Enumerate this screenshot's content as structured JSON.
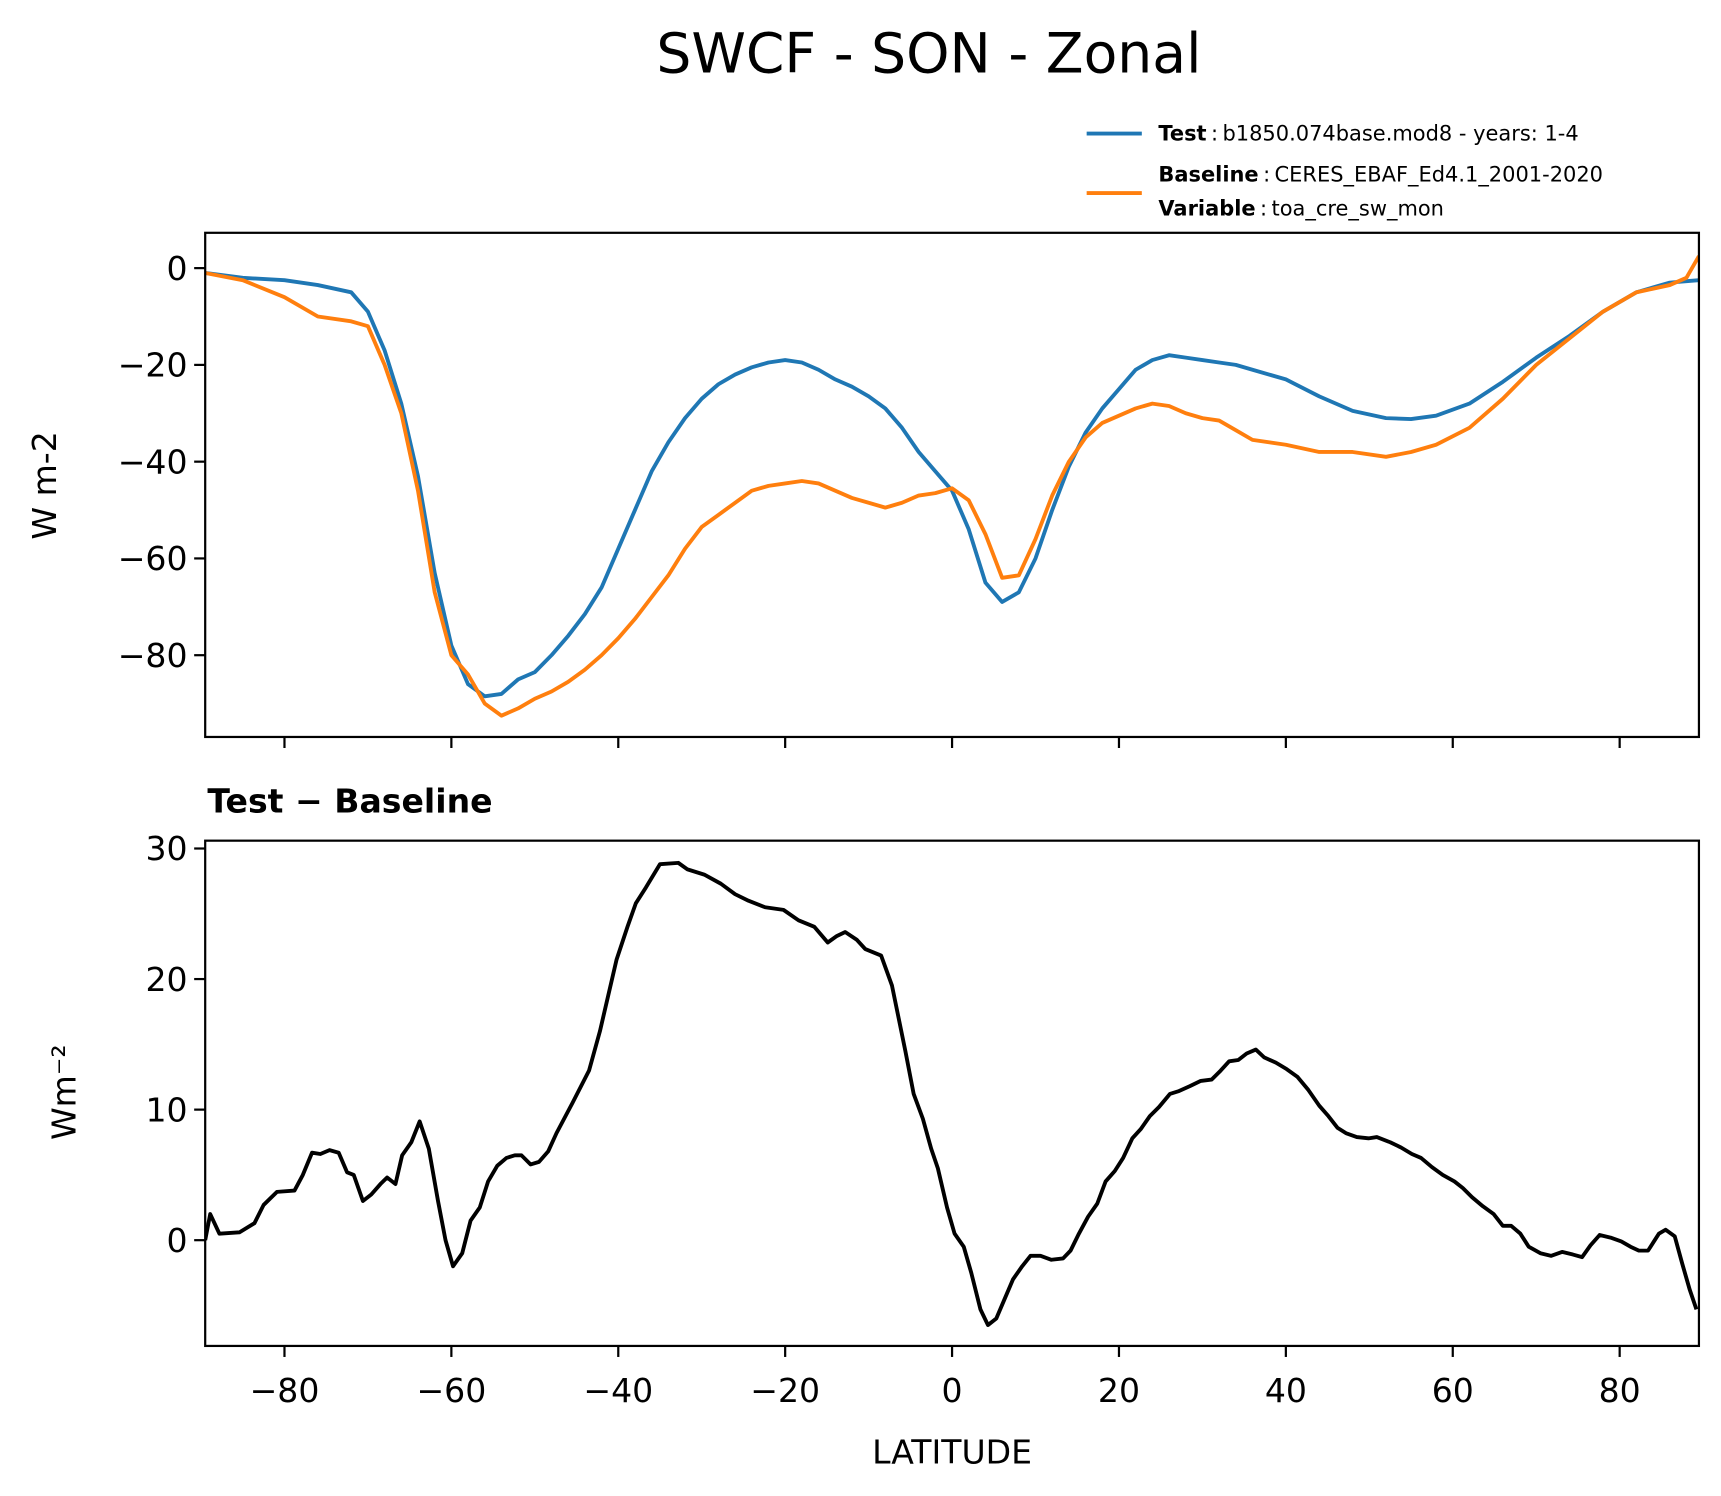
{
  "title": "SWCF - SON - Zonal",
  "chart_data": [
    {
      "type": "line",
      "ylabel": "W m-2",
      "legend_separator": ":",
      "legend_extra": {
        "name": "Variable",
        "description": "toa_cre_sw_mon"
      },
      "xlim": [
        -89.5,
        89.5
      ],
      "ylim": [
        -96.9,
        7.3
      ],
      "yticks": [
        0,
        {
          "value": -20,
          "label": "−20"
        },
        {
          "value": -40,
          "label": "−40"
        },
        {
          "value": -60,
          "label": "−60"
        },
        {
          "value": -80,
          "label": "−80"
        }
      ],
      "x": [
        -89.5,
        -85,
        -80,
        -76,
        -72,
        -70,
        -68,
        -66,
        -64,
        -62,
        -60,
        -58,
        -56,
        -54,
        -52,
        -50,
        -48,
        -46,
        -44,
        -42,
        -40,
        -38,
        -36,
        -34,
        -32,
        -30,
        -28,
        -26,
        -24,
        -22,
        -20,
        -18,
        -16,
        -14,
        -12,
        -10,
        -8,
        -6,
        -4,
        -2,
        0,
        2,
        4,
        6,
        8,
        10,
        12,
        14,
        16,
        18,
        20,
        22,
        24,
        26,
        28,
        30,
        32,
        34,
        36,
        40,
        44,
        48,
        52,
        55,
        58,
        62,
        66,
        70,
        74,
        78,
        82,
        86,
        88,
        89.5
      ],
      "series": [
        {
          "name": "Test",
          "description": "b1850.074base.mod8 - years: 1-4",
          "color": "#1f77b4",
          "values": [
            -1,
            -2,
            -2.5,
            -3.5,
            -5,
            -9,
            -17,
            -28,
            -43,
            -63,
            -78,
            -86,
            -88.5,
            -88,
            -85,
            -83.5,
            -80,
            -76,
            -71.5,
            -66,
            -58,
            -50,
            -42,
            -36,
            -31,
            -27,
            -24,
            -22,
            -20.5,
            -19.5,
            -19,
            -19.5,
            -21,
            -23,
            -24.5,
            -26.5,
            -29,
            -33,
            -38,
            -42,
            -46,
            -54,
            -65,
            -69,
            -67,
            -60,
            -50,
            -41,
            -34,
            -29,
            -25,
            -21,
            -19,
            -18,
            -18.5,
            -19,
            -19.5,
            -20,
            -21,
            -23,
            -26.5,
            -29.5,
            -31,
            -31.2,
            -30.5,
            -28,
            -23.5,
            -18.5,
            -14,
            -9,
            -5,
            -3,
            -2.7,
            -2.5
          ]
        },
        {
          "name": "Baseline",
          "description": "CERES_EBAF_Ed4.1_2001-2020",
          "color": "#ff7f0e",
          "values": [
            -1,
            -2.5,
            -6,
            -10,
            -11,
            -12,
            -20,
            -30,
            -46,
            -67,
            -80,
            -84,
            -90,
            -92.5,
            -91,
            -89,
            -87.5,
            -85.5,
            -83,
            -80,
            -76.5,
            -72.5,
            -68,
            -63.5,
            -58,
            -53.5,
            -51,
            -48.5,
            -46,
            -45,
            -44.5,
            -44,
            -44.5,
            -46,
            -47.5,
            -48.5,
            -49.5,
            -48.5,
            -47,
            -46.5,
            -45.5,
            -48,
            -55,
            -64,
            -63.5,
            -56,
            -47,
            -40,
            -35,
            -32,
            -30.5,
            -29,
            -28,
            -28.5,
            -30,
            -31,
            -31.5,
            -33.5,
            -35.5,
            -36.5,
            -38,
            -38,
            -39,
            -38,
            -36.5,
            -33,
            -27,
            -20,
            -14.5,
            -9,
            -5,
            -3.5,
            -2,
            2.5
          ]
        }
      ]
    },
    {
      "type": "line",
      "title": "Test − Baseline",
      "ylabel": "Wm⁻²",
      "xlabel": "LATITUDE",
      "xlim": [
        -89.5,
        89.5
      ],
      "ylim": [
        -8.1,
        30.6
      ],
      "yticks": [
        0,
        10,
        20,
        30
      ],
      "xticks": [
        {
          "value": -80,
          "label": "−80"
        },
        {
          "value": -60,
          "label": "−60"
        },
        {
          "value": -40,
          "label": "−40"
        },
        {
          "value": -20,
          "label": "−20"
        },
        0,
        20,
        40,
        60,
        80
      ],
      "x": [
        -89.5,
        -88.9,
        -87.8,
        -85.4,
        -83.6,
        -82.5,
        -80.9,
        -78.8,
        -77.8,
        -76.7,
        -75.7,
        -74.6,
        -73.5,
        -72.5,
        -71.7,
        -70.6,
        -69.6,
        -68.5,
        -67.7,
        -66.7,
        -65.9,
        -64.8,
        -63.8,
        -62.7,
        -61.6,
        -60.7,
        -59.8,
        -58.7,
        -57.7,
        -56.6,
        -55.6,
        -54.5,
        -53.4,
        -52.4,
        -51.6,
        -50.5,
        -49.5,
        -48.4,
        -47.4,
        -45.5,
        -43.5,
        -42.2,
        -40.2,
        -38.9,
        -37.9,
        -36.7,
        -35,
        -32.8,
        -31.7,
        -29.7,
        -27.7,
        -26,
        -24.4,
        -22.4,
        -20.2,
        -18.4,
        -16.5,
        -14.9,
        -13.8,
        -12.8,
        -11.4,
        -10.4,
        -8.5,
        -7.2,
        -5.6,
        -4.6,
        -3.5,
        -2.5,
        -1.7,
        -0.6,
        0.3,
        1.4,
        2.3,
        3.4,
        4.3,
        5.3,
        6.3,
        7.3,
        8.4,
        9.4,
        10.6,
        11.9,
        13.3,
        14.2,
        15.2,
        16.3,
        17.4,
        18.4,
        19.5,
        20.5,
        21.6,
        22.6,
        23.7,
        24.8,
        26.1,
        27.1,
        28.5,
        29.8,
        31.1,
        32.2,
        33.2,
        34.3,
        35.3,
        36.4,
        37.4,
        38.8,
        40.1,
        41.4,
        42.7,
        44,
        45.1,
        46.2,
        47.2,
        48.5,
        49.9,
        50.9,
        52.5,
        53.8,
        55.1,
        56.2,
        57.5,
        58.8,
        60.2,
        61.2,
        62.3,
        63.6,
        64.9,
        66,
        67,
        68.1,
        69.1,
        70.5,
        71.8,
        73.1,
        74.4,
        75.5,
        76.5,
        77.6,
        78.9,
        80.2,
        81.3,
        82.3,
        83.4,
        84.7,
        85.5,
        86.6,
        87.5,
        88.4,
        89.2
      ],
      "series": [
        {
          "color": "#000000",
          "values": [
            0,
            2,
            0.5,
            0.6,
            1.3,
            2.7,
            3.7,
            3.8,
            5,
            6.7,
            6.6,
            6.9,
            6.7,
            5.2,
            5,
            3,
            3.5,
            4.3,
            4.8,
            4.3,
            6.5,
            7.5,
            9.1,
            7,
            3,
            0,
            -2,
            -1,
            1.5,
            2.5,
            4.5,
            5.7,
            6.3,
            6.5,
            6.5,
            5.8,
            6,
            6.8,
            8.2,
            10.5,
            13,
            16,
            21.5,
            24,
            25.8,
            27,
            28.8,
            28.9,
            28.4,
            28,
            27.3,
            26.5,
            26,
            25.5,
            25.3,
            24.5,
            24,
            22.8,
            23.3,
            23.6,
            23,
            22.3,
            21.8,
            19.5,
            14.5,
            11.2,
            9.3,
            7,
            5.5,
            2.5,
            0.5,
            -0.5,
            -2.5,
            -5.3,
            -6.5,
            -6,
            -4.5,
            -3,
            -2,
            -1.2,
            -1.2,
            -1.5,
            -1.4,
            -0.8,
            0.5,
            1.8,
            2.8,
            4.5,
            5.3,
            6.3,
            7.8,
            8.5,
            9.5,
            10.2,
            11.2,
            11.4,
            11.8,
            12.2,
            12.3,
            13,
            13.7,
            13.8,
            14.3,
            14.6,
            14,
            13.6,
            13.1,
            12.5,
            11.5,
            10.3,
            9.5,
            8.6,
            8.2,
            7.9,
            7.8,
            7.9,
            7.5,
            7.1,
            6.6,
            6.3,
            5.6,
            5,
            4.5,
            4,
            3.3,
            2.6,
            2,
            1.1,
            1.1,
            0.5,
            -0.5,
            -1,
            -1.2,
            -0.9,
            -1.1,
            -1.3,
            -0.4,
            0.4,
            0.2,
            -0.1,
            -0.5,
            -0.8,
            -0.8,
            0.5,
            0.8,
            0.3,
            -1.8,
            -3.8,
            -5.3
          ]
        }
      ]
    }
  ]
}
